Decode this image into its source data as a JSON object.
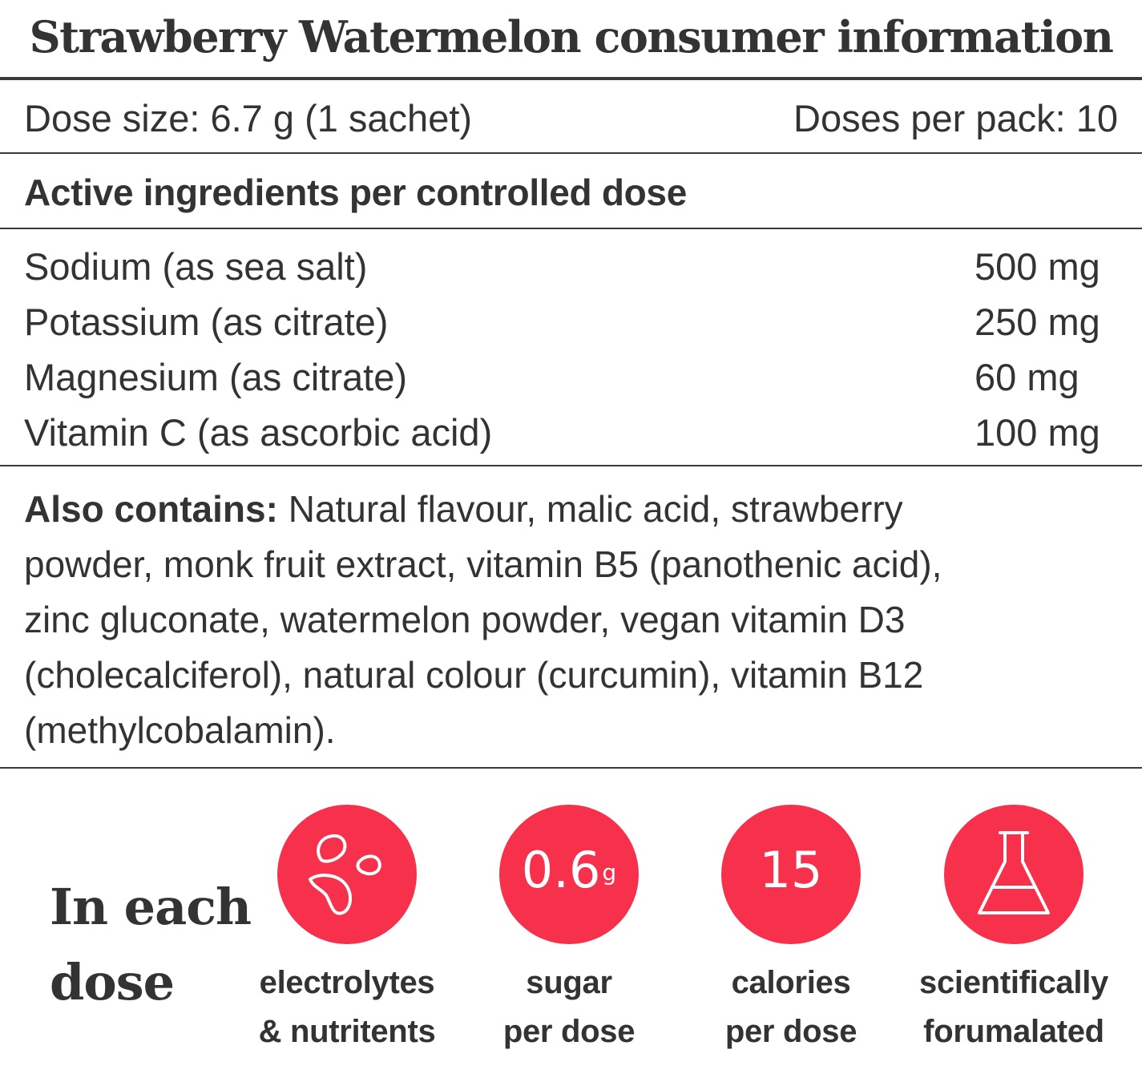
{
  "title": "Strawberry Watermelon consumer information",
  "dose_info": {
    "dose_size": "Dose size: 6.7 g (1 sachet)",
    "doses_per_pack": "Doses per pack: 10"
  },
  "active_heading": "Active ingredients per controlled dose",
  "ingredients": [
    {
      "name": "Sodium (as sea salt)",
      "amount": "500 mg"
    },
    {
      "name": "Potassium (as citrate)",
      "amount": "250 mg"
    },
    {
      "name": "Magnesium (as citrate)",
      "amount": "60 mg"
    },
    {
      "name": "Vitamin C (as ascorbic acid)",
      "amount": "100 mg"
    }
  ],
  "also_contains": {
    "label": "Also contains:",
    "lines": [
      " Natural flavour, malic acid, strawberry",
      "powder, monk fruit extract, vitamin B5 (panothenic acid),",
      "zinc gluconate, watermelon powder, vegan vitamin D3",
      "(cholecalciferol), natural colour (curcumin), vitamin B12",
      "(methylcobalamin)."
    ]
  },
  "in_each_dose": {
    "heading_line1": "In each",
    "heading_line2": "dose",
    "accent_color": "#f7304b",
    "badges": [
      {
        "icon": "droplets-icon",
        "caption_line1": "electrolytes",
        "caption_line2": "& nutritents"
      },
      {
        "value": "0.6",
        "unit": "g",
        "caption_line1": "sugar",
        "caption_line2": "per dose"
      },
      {
        "value": "15",
        "caption_line1": "calories",
        "caption_line2": "per dose"
      },
      {
        "icon": "flask-icon",
        "caption_line1": "scientifically",
        "caption_line2": "forumalated"
      }
    ]
  }
}
